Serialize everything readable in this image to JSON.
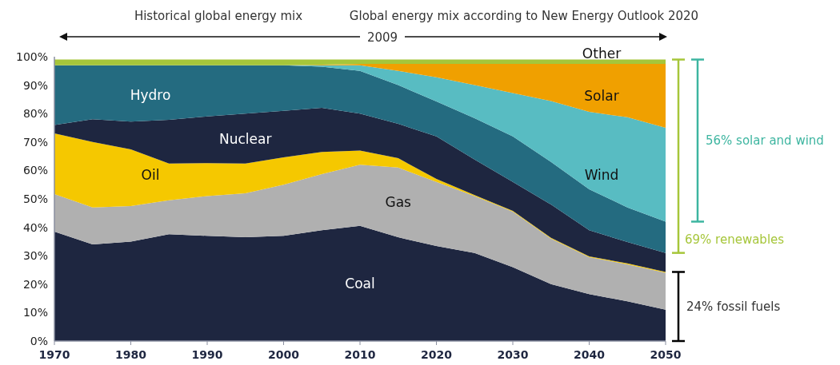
{
  "chart_data": {
    "type": "area",
    "stacked": true,
    "x": [
      1970,
      1975,
      1980,
      1985,
      1990,
      1995,
      2000,
      2005,
      2010,
      2015,
      2020,
      2025,
      2030,
      2035,
      2040,
      2045,
      2050
    ],
    "series": [
      {
        "name": "Coal",
        "color": "#1e2640",
        "values": [
          38.5,
          34,
          35,
          37.6,
          37,
          36.5,
          37,
          39,
          40.5,
          36.5,
          33.4,
          31,
          26,
          20,
          16.5,
          14,
          11
        ]
      },
      {
        "name": "Gas",
        "color": "#b0b0b0",
        "values": [
          13.2,
          13,
          12.5,
          11.9,
          14,
          15.5,
          18,
          19.7,
          21.5,
          24.5,
          22.6,
          20,
          19.5,
          16,
          13,
          13,
          13
        ]
      },
      {
        "name": "Oil",
        "color": "#f5c800",
        "values": [
          21.3,
          23,
          19.9,
          12.9,
          11.6,
          10.4,
          9.6,
          7.8,
          5,
          3.3,
          1,
          0.3,
          0.3,
          0.3,
          0.3,
          0.3,
          0.3
        ]
      },
      {
        "name": "Nuclear",
        "color": "#1e2640",
        "values": [
          3,
          8,
          9.8,
          15.4,
          16.4,
          17.6,
          16.4,
          15.5,
          13,
          12.1,
          15,
          12.5,
          10.2,
          11.7,
          9.2,
          7.5,
          6.7
        ]
      },
      {
        "name": "Hydro",
        "color": "#246b80",
        "values": [
          21,
          19,
          19.8,
          19.2,
          18,
          17,
          16,
          14.5,
          15,
          13.6,
          12.3,
          14.6,
          16,
          15,
          14.4,
          12.2,
          11
        ]
      },
      {
        "name": "Wind",
        "color": "#58bcc2",
        "values": [
          0,
          0,
          0,
          0,
          0,
          0,
          0,
          0.5,
          2,
          5,
          8.5,
          11.6,
          15.2,
          21.4,
          27.2,
          31.7,
          33
        ]
      },
      {
        "name": "Solar",
        "color": "#f0a000",
        "values": [
          0,
          0,
          0,
          0,
          0,
          0,
          0,
          0.2,
          0.5,
          2.5,
          4.7,
          7.5,
          10.3,
          13.1,
          16.9,
          18.8,
          22.5
        ]
      },
      {
        "name": "Other",
        "color": "#a6c63a",
        "values": [
          2,
          2,
          2,
          2,
          2,
          2,
          2,
          1.8,
          1.5,
          1.5,
          1.5,
          1.5,
          1.5,
          1.5,
          1.5,
          1.5,
          1.5
        ]
      }
    ],
    "xlim": [
      1970,
      2050
    ],
    "xticks": [
      1970,
      1980,
      1990,
      2000,
      2010,
      2020,
      2030,
      2040,
      2050
    ],
    "ylim": [
      0,
      100
    ],
    "yticks": [
      {
        "value": 0,
        "label": "0%"
      },
      {
        "value": 10,
        "label": "10%"
      },
      {
        "value": 20,
        "label": "20%"
      },
      {
        "value": 30,
        "label": "30%"
      },
      {
        "value": 40,
        "label": "40%"
      },
      {
        "value": 50,
        "label": "50%"
      },
      {
        "value": 60,
        "label": "60%"
      },
      {
        "value": 70,
        "label": "70%"
      },
      {
        "value": 80,
        "label": "80%"
      },
      {
        "value": 90,
        "label": "90%"
      },
      {
        "value": 100,
        "label": "100%"
      }
    ],
    "grid": false,
    "legend": false,
    "annotations": [
      "Historical global energy mix",
      "Global energy mix according to New Energy Outlook 2020",
      "2009",
      "69% renewables",
      "56% solar and wind",
      "24% fossil fuels"
    ]
  }
}
